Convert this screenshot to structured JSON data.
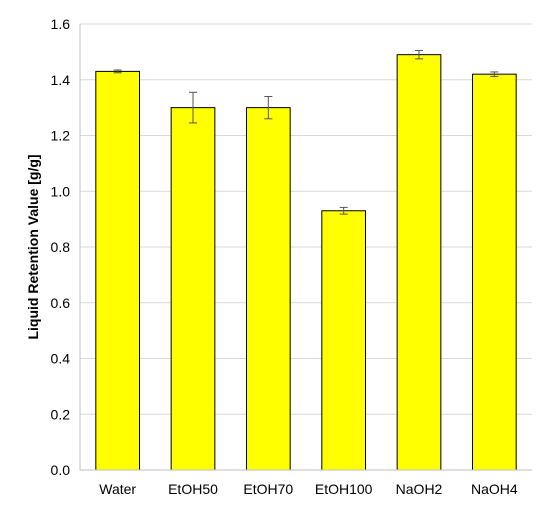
{
  "chart_data": {
    "type": "bar",
    "title": "",
    "xlabel": "",
    "ylabel": "Liquid Retention Value [g/g]",
    "categories": [
      "Water",
      "EtOH50",
      "EtOH70",
      "EtOH100",
      "NaOH2",
      "NaOH4"
    ],
    "values": [
      1.43,
      1.3,
      1.3,
      0.93,
      1.49,
      1.42
    ],
    "errors": [
      0.005,
      0.055,
      0.04,
      0.012,
      0.015,
      0.008
    ],
    "ylim": [
      0,
      1.6
    ],
    "yticks": [
      "0.0",
      "0.2",
      "0.4",
      "0.6",
      "0.8",
      "1.0",
      "1.2",
      "1.4",
      "1.6"
    ],
    "grid": true,
    "legend": "none",
    "bar_color": "#ffff00",
    "bar_edge_color": "#000000",
    "grid_color": "#d9d9d9"
  }
}
